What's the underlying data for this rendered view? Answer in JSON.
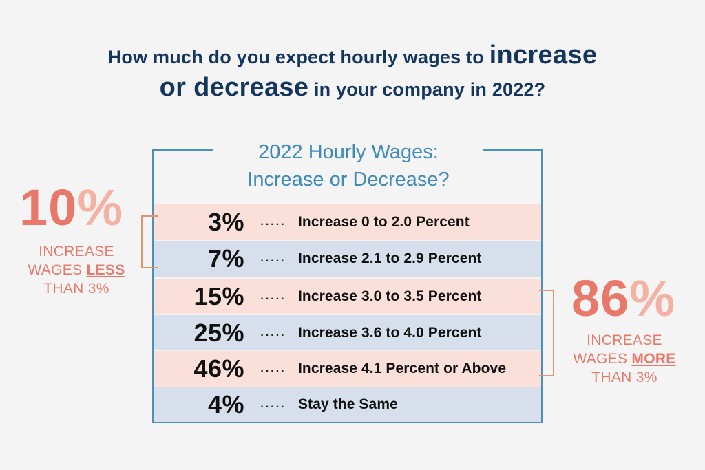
{
  "headline": {
    "part1": "How much do you expect hourly wages to ",
    "em1": "increase",
    "em2": "or decrease",
    "part2": " in your company in 2022?"
  },
  "frame_title": {
    "line1": "2022 Hourly Wages:",
    "line2": "Increase or Decrease?"
  },
  "colors": {
    "pink_row": "#fbe0da",
    "blue_row": "#d6dfeb",
    "navy": "#14355e",
    "blue": "#3e8ab8",
    "coral": "#e8796a",
    "coral_light": "#f5b2a4",
    "bracket": "#e2956b"
  },
  "chart_data": {
    "type": "table",
    "title": "2022 Hourly Wages: Increase or Decrease?",
    "rows": [
      {
        "value": "3%",
        "label": "Increase 0 to 2.0 Percent",
        "band": "pink"
      },
      {
        "value": "7%",
        "label": "Increase 2.1 to 2.9 Percent",
        "band": "blue"
      },
      {
        "value": "15%",
        "label": "Increase 3.0 to 3.5 Percent",
        "band": "pink"
      },
      {
        "value": "25%",
        "label": "Increase 3.6 to 4.0 Percent",
        "band": "blue"
      },
      {
        "value": "46%",
        "label": "Increase 4.1 Percent or Above",
        "band": "pink"
      },
      {
        "value": "4%",
        "label": "Stay the Same",
        "band": "blue"
      }
    ],
    "dots": ".....",
    "summaries": [
      {
        "side": "left",
        "value": "10",
        "unit": "%",
        "line1": "INCREASE",
        "line2_pre": "WAGES ",
        "line2_em": "LESS",
        "line3": "THAN 3%"
      },
      {
        "side": "right",
        "value": "86",
        "unit": "%",
        "line1": "INCREASE",
        "line2_pre": "WAGES ",
        "line2_em": "MORE",
        "line3": "THAN 3%"
      }
    ]
  }
}
